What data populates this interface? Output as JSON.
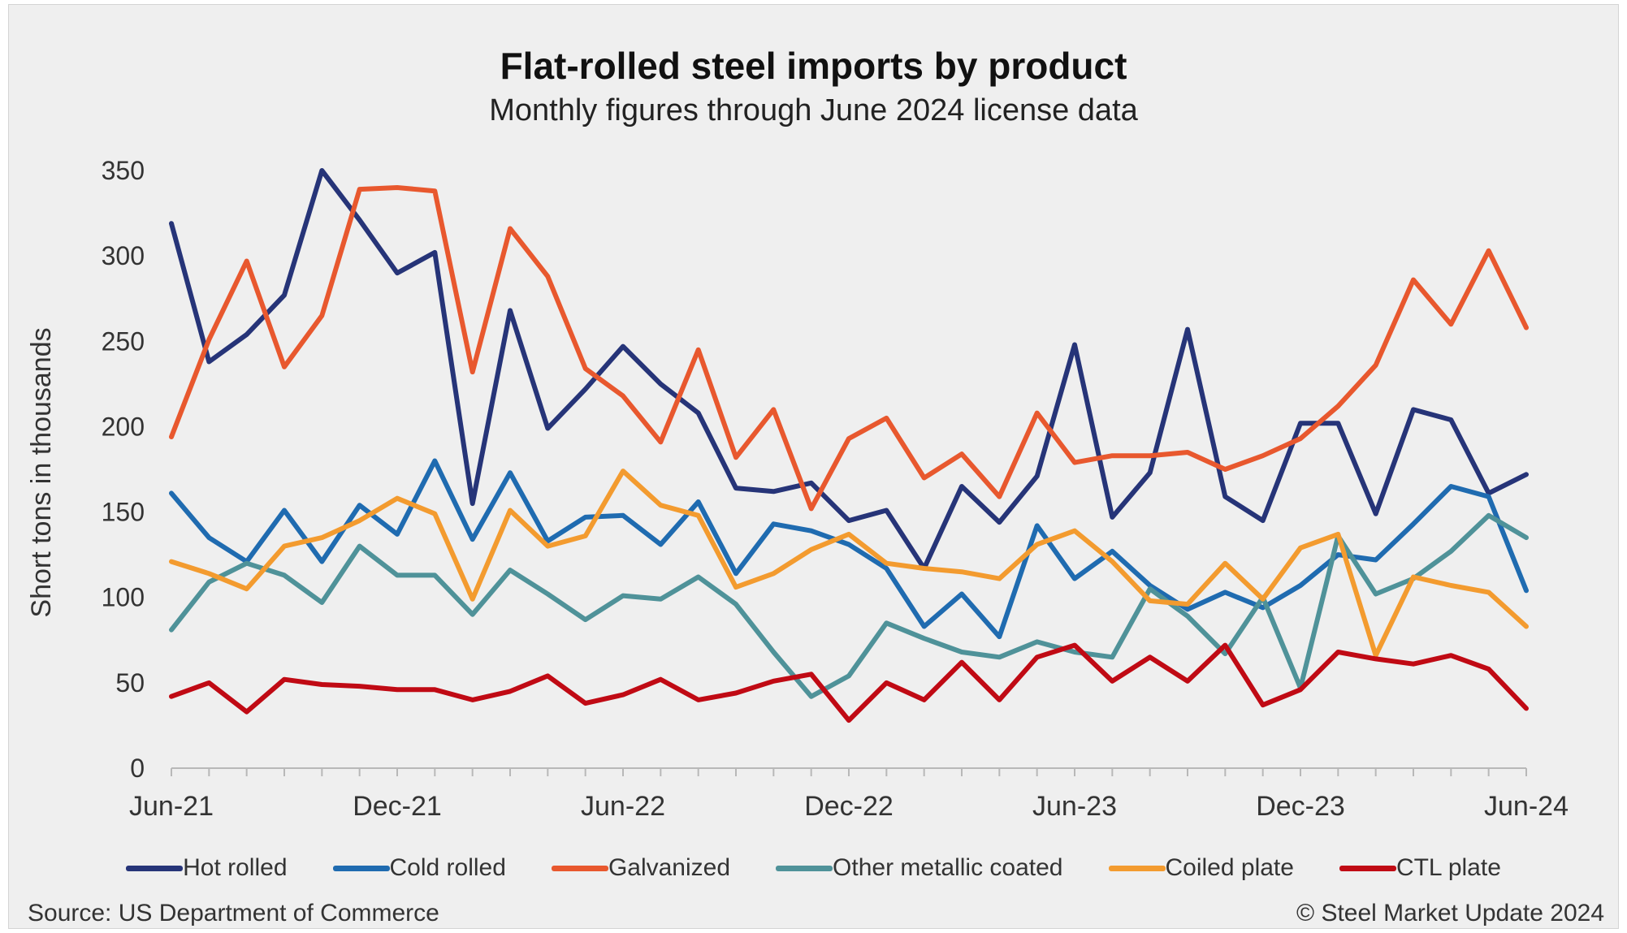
{
  "chart_data": {
    "type": "line",
    "title": "Flat-rolled steel imports by product",
    "subtitle": "Monthly figures through June 2024 license data",
    "ylabel": "Short tons in thousands",
    "ylim": [
      0,
      350
    ],
    "yticks": [
      0,
      50,
      100,
      150,
      200,
      250,
      300,
      350
    ],
    "x": [
      "Jun-21",
      "Jul-21",
      "Aug-21",
      "Sep-21",
      "Oct-21",
      "Nov-21",
      "Dec-21",
      "Jan-22",
      "Feb-22",
      "Mar-22",
      "Apr-22",
      "May-22",
      "Jun-22",
      "Jul-22",
      "Aug-22",
      "Sep-22",
      "Oct-22",
      "Nov-22",
      "Dec-22",
      "Jan-23",
      "Feb-23",
      "Mar-23",
      "Apr-23",
      "May-23",
      "Jun-23",
      "Jul-23",
      "Aug-23",
      "Sep-23",
      "Oct-23",
      "Nov-23",
      "Dec-23",
      "Jan-24",
      "Feb-24",
      "Mar-24",
      "Apr-24",
      "May-24",
      "Jun-24"
    ],
    "xtick_labels": [
      {
        "index": 0,
        "label": "Jun-21"
      },
      {
        "index": 6,
        "label": "Dec-21"
      },
      {
        "index": 12,
        "label": "Jun-22"
      },
      {
        "index": 18,
        "label": "Dec-22"
      },
      {
        "index": 24,
        "label": "Jun-23"
      },
      {
        "index": 30,
        "label": "Dec-23"
      },
      {
        "index": 36,
        "label": "Jun-24"
      }
    ],
    "grid": false,
    "legend_position": "bottom",
    "series": [
      {
        "name": "Hot rolled",
        "color": "#263478",
        "values": [
          319,
          238,
          254,
          277,
          350,
          321,
          290,
          302,
          155,
          268,
          199,
          222,
          247,
          225,
          208,
          164,
          162,
          167,
          145,
          151,
          117,
          165,
          144,
          171,
          248,
          147,
          173,
          257,
          159,
          145,
          202,
          202,
          149,
          210,
          204,
          161,
          172
        ]
      },
      {
        "name": "Cold rolled",
        "color": "#1F6BB0",
        "values": [
          161,
          135,
          121,
          151,
          121,
          154,
          137,
          180,
          134,
          173,
          133,
          147,
          148,
          131,
          156,
          114,
          143,
          139,
          131,
          117,
          83,
          102,
          77,
          142,
          111,
          127,
          107,
          93,
          103,
          94,
          107,
          125,
          122,
          143,
          165,
          159,
          104
        ]
      },
      {
        "name": "Galvanized",
        "color": "#E8582E",
        "values": [
          194,
          251,
          297,
          235,
          265,
          339,
          340,
          338,
          232,
          316,
          288,
          234,
          218,
          191,
          245,
          182,
          210,
          152,
          193,
          205,
          170,
          184,
          159,
          208,
          179,
          183,
          183,
          185,
          175,
          183,
          193,
          212,
          236,
          286,
          260,
          303,
          258
        ]
      },
      {
        "name": "Other metallic coated",
        "color": "#4F9299",
        "values": [
          81,
          109,
          120,
          113,
          97,
          130,
          113,
          113,
          90,
          116,
          102,
          87,
          101,
          99,
          112,
          96,
          68,
          42,
          54,
          85,
          76,
          68,
          65,
          74,
          68,
          65,
          105,
          89,
          67,
          100,
          47,
          136,
          102,
          111,
          127,
          148,
          135
        ]
      },
      {
        "name": "Coiled plate",
        "color": "#F39B2F",
        "values": [
          121,
          114,
          105,
          130,
          135,
          145,
          158,
          149,
          99,
          151,
          130,
          136,
          174,
          154,
          148,
          106,
          114,
          128,
          137,
          120,
          117,
          115,
          111,
          131,
          139,
          121,
          98,
          96,
          120,
          99,
          129,
          137,
          66,
          112,
          107,
          103,
          83
        ]
      },
      {
        "name": "CTL plate",
        "color": "#C00A14",
        "values": [
          42,
          50,
          33,
          52,
          49,
          48,
          46,
          46,
          40,
          45,
          54,
          38,
          43,
          52,
          40,
          44,
          51,
          55,
          28,
          50,
          40,
          62,
          40,
          65,
          72,
          51,
          65,
          51,
          72,
          37,
          46,
          68,
          64,
          61,
          66,
          58,
          35
        ]
      }
    ]
  },
  "footer": {
    "source": "Source: US Department of Commerce",
    "copyright": "© Steel Market Update 2024"
  }
}
